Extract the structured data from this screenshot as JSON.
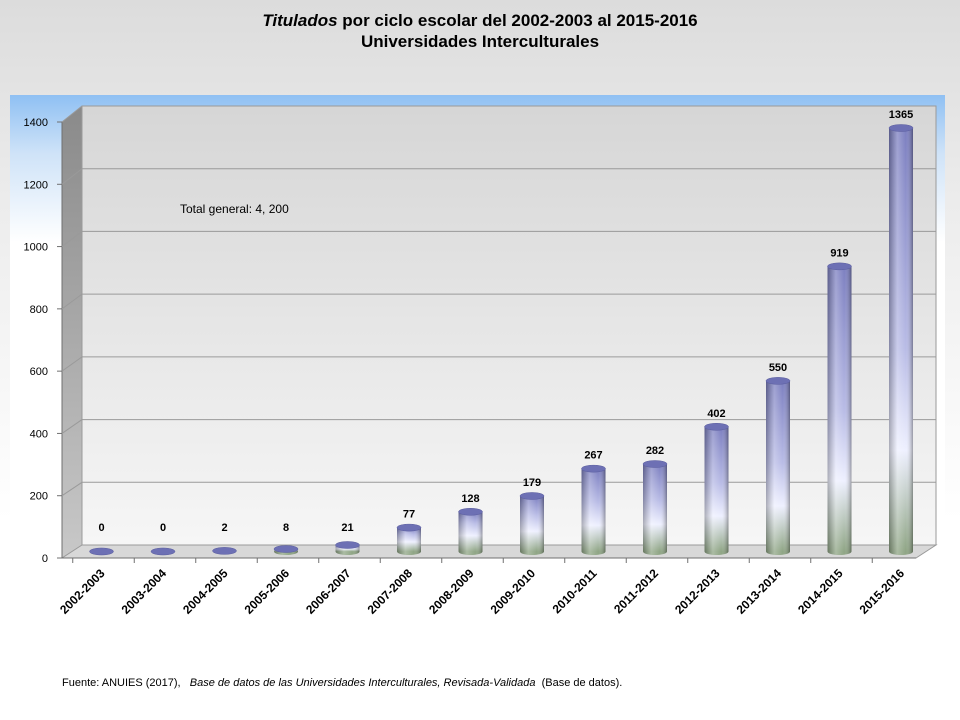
{
  "title": {
    "italic_part": "Titulados",
    "rest": " por ciclo escolar del  2002-2003 al  2015-2016",
    "line2": "Universidades Interculturales"
  },
  "note": "Total general: 4, 200",
  "source": {
    "prefix": "Fuente: ANUIES (2017),",
    "italic": "Base de datos de las Universidades  Interculturales, Revisada-Validada",
    "suffix": " (Base de datos)."
  },
  "chart_data": {
    "type": "bar",
    "title": "Titulados por ciclo escolar del 2002-2003 al 2015-2016 Universidades Interculturales",
    "xlabel": "",
    "ylabel": "",
    "ylim": [
      0,
      1400
    ],
    "yticks": [
      "0",
      "200",
      "400",
      "600",
      "800",
      "1000",
      "1200",
      "1400"
    ],
    "grid": true,
    "categories": [
      "2002-2003",
      "2003-2004",
      "2004-2005",
      "2005-2006",
      "2006-2007",
      "2007-2008",
      "2008-2009",
      "2009-2010",
      "2010-2011",
      "2011-2012",
      "2012-2013",
      "2013-2014",
      "2014-2015",
      "2015-2016"
    ],
    "values": [
      0,
      0,
      2,
      8,
      21,
      77,
      128,
      179,
      267,
      282,
      402,
      550,
      919,
      1365
    ],
    "data_labels": [
      "0",
      "0",
      "2",
      "8",
      "21",
      "77",
      "128",
      "179",
      "267",
      "282",
      "402",
      "550",
      "919",
      "1365"
    ],
    "colors": {
      "bar_top": "#7c7fc0",
      "bar_mid": "#eef0ff",
      "bar_base": "#8fa585",
      "sky": "#9cc8f5"
    }
  }
}
